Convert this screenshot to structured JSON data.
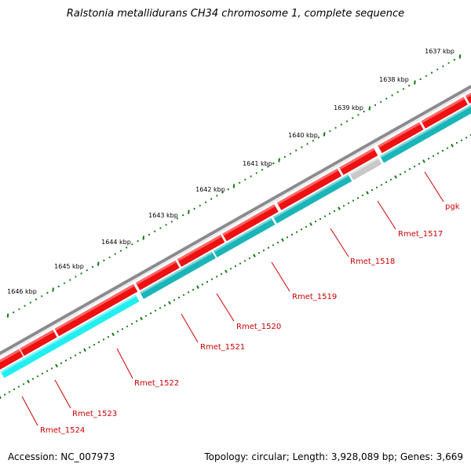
{
  "title": "Ralstonia metallidurans CH34 chromosome 1, complete sequence",
  "accession": "Accession: NC_007973",
  "stats": "Topology: circular; Length: 3,928,089 bp; Genes: 3,669",
  "colors": {
    "backbone": "#8c8a8e",
    "forward_gene": "#ee1111",
    "reverse_gene": "#19b5b9",
    "reverse_gene_light": "#22eef0",
    "pseudo_gene": "#c8c8c8",
    "tick": "#117711",
    "label": "#cc0000"
  },
  "ticks": [
    "1637 kbp",
    "1638 kbp",
    "1639 kbp",
    "1640 kbp",
    "1641 kbp",
    "1642 kbp",
    "1643 kbp",
    "1644 kbp",
    "1645 kbp",
    "1646 kbp"
  ],
  "genes": [
    {
      "label": "pgk",
      "strand": "reverse"
    },
    {
      "label": "Rmet_1517",
      "strand": "reverse"
    },
    {
      "label": "Rmet_1518",
      "strand": "reverse"
    },
    {
      "label": "Rmet_1519",
      "strand": "reverse"
    },
    {
      "label": "Rmet_1520",
      "strand": "forward"
    },
    {
      "label": "Rmet_1521",
      "strand": "forward"
    },
    {
      "label": "Rmet_1522",
      "strand": "reverse"
    },
    {
      "label": "Rmet_1523",
      "strand": "forward"
    },
    {
      "label": "Rmet_1524",
      "strand": "reverse"
    }
  ]
}
